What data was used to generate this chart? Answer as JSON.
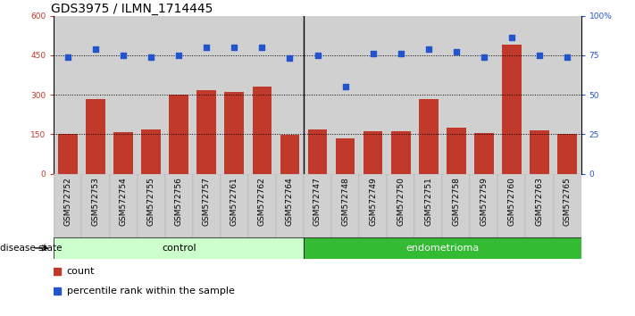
{
  "title": "GDS3975 / ILMN_1714445",
  "samples": [
    "GSM572752",
    "GSM572753",
    "GSM572754",
    "GSM572755",
    "GSM572756",
    "GSM572757",
    "GSM572761",
    "GSM572762",
    "GSM572764",
    "GSM572747",
    "GSM572748",
    "GSM572749",
    "GSM572750",
    "GSM572751",
    "GSM572758",
    "GSM572759",
    "GSM572760",
    "GSM572763",
    "GSM572765"
  ],
  "counts": [
    150,
    285,
    160,
    170,
    300,
    318,
    312,
    332,
    148,
    170,
    135,
    163,
    163,
    285,
    175,
    155,
    490,
    165,
    150
  ],
  "percentiles": [
    74,
    79,
    75,
    74,
    75,
    80,
    80,
    80,
    73,
    75,
    55,
    76,
    76,
    79,
    77,
    74,
    86,
    75,
    74
  ],
  "control_count": 9,
  "endometrioma_count": 10,
  "left_ylim": [
    0,
    600
  ],
  "right_ylim": [
    0,
    100
  ],
  "left_yticks": [
    0,
    150,
    300,
    450,
    600
  ],
  "left_yticklabels": [
    "0",
    "150",
    "300",
    "450",
    "600"
  ],
  "right_yticks": [
    0,
    25,
    50,
    75,
    100
  ],
  "right_yticklabels": [
    "0",
    "25",
    "50",
    "75",
    "100%"
  ],
  "bar_color": "#c0392b",
  "dot_color": "#2255cc",
  "control_bg": "#ccffcc",
  "endometrioma_bg": "#33bb33",
  "sample_bg": "#d0d0d0",
  "title_fontsize": 10,
  "tick_fontsize": 6.5,
  "legend_fontsize": 8
}
